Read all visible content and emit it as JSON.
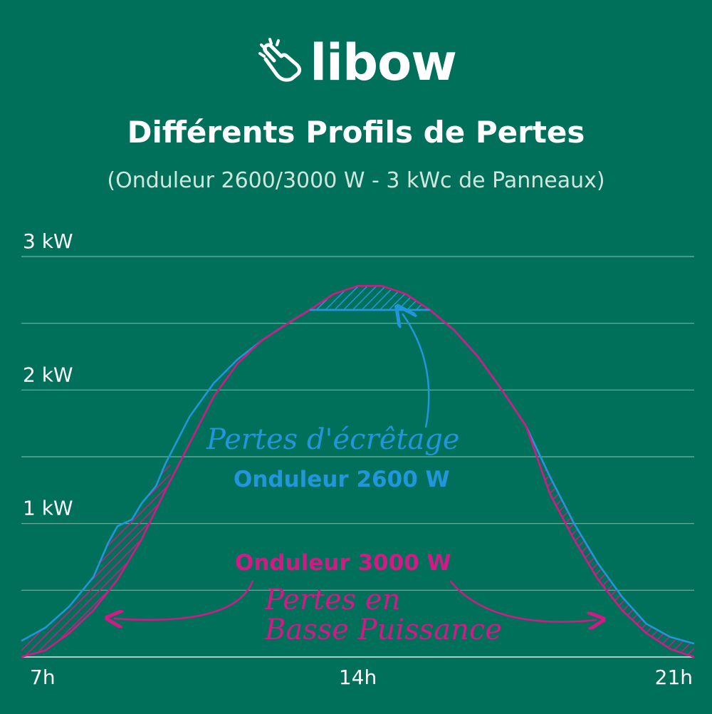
{
  "brand": {
    "name": "libow",
    "logo_icon": "hand-pointing-icon"
  },
  "chart_data": {
    "type": "area",
    "title": "Différents Profils de Pertes",
    "subtitle": "(Onduleur 2600/3000 W - 3 kWc de Panneaux)",
    "x_ticks": [
      "7h",
      "14h",
      "21h"
    ],
    "y_ticks": [
      "1 kW",
      "2 kW",
      "3 kW"
    ],
    "xlim": [
      7,
      21
    ],
    "ylim": [
      0,
      3
    ],
    "grid": true,
    "series": [
      {
        "name": "Onduleur 2600 W",
        "color": "#2196DC",
        "x": [
          7,
          7.5,
          8,
          8.5,
          8.8,
          9,
          9.3,
          9.5,
          9.8,
          10,
          10.5,
          11,
          11.5,
          12,
          12.5,
          13,
          13.5,
          14,
          14.5,
          15,
          15.5,
          16,
          16.5,
          17,
          17.5,
          18,
          18.5,
          19,
          19.5,
          20,
          20.5,
          21
        ],
        "values": [
          0.12,
          0.22,
          0.38,
          0.6,
          0.85,
          0.98,
          1.03,
          1.15,
          1.28,
          1.45,
          1.8,
          2.05,
          2.23,
          2.37,
          2.49,
          2.6,
          2.6,
          2.6,
          2.6,
          2.6,
          2.6,
          2.45,
          2.25,
          2.0,
          1.73,
          1.35,
          1.0,
          0.7,
          0.45,
          0.25,
          0.15,
          0.1
        ]
      },
      {
        "name": "Onduleur 3000 W",
        "color": "#D11A85",
        "x": [
          7,
          7.5,
          8,
          8.5,
          9,
          9.5,
          10,
          10.5,
          11,
          11.5,
          12,
          12.5,
          13,
          13.5,
          14,
          14.5,
          15,
          15.5,
          16,
          16.5,
          17,
          17.5,
          18,
          18.5,
          19,
          19.5,
          20,
          20.5,
          21
        ],
        "values": [
          0.0,
          0.05,
          0.18,
          0.35,
          0.58,
          0.88,
          1.25,
          1.6,
          1.95,
          2.2,
          2.37,
          2.49,
          2.6,
          2.72,
          2.78,
          2.78,
          2.72,
          2.6,
          2.45,
          2.25,
          2.0,
          1.73,
          1.22,
          0.88,
          0.58,
          0.35,
          0.18,
          0.06,
          0.0
        ]
      }
    ],
    "annotations": [
      {
        "text": "Pertes d'écrêtage",
        "color": "#2196DC"
      },
      {
        "text": "Pertes en Basse Puissance",
        "color": "#D11A85"
      }
    ]
  }
}
